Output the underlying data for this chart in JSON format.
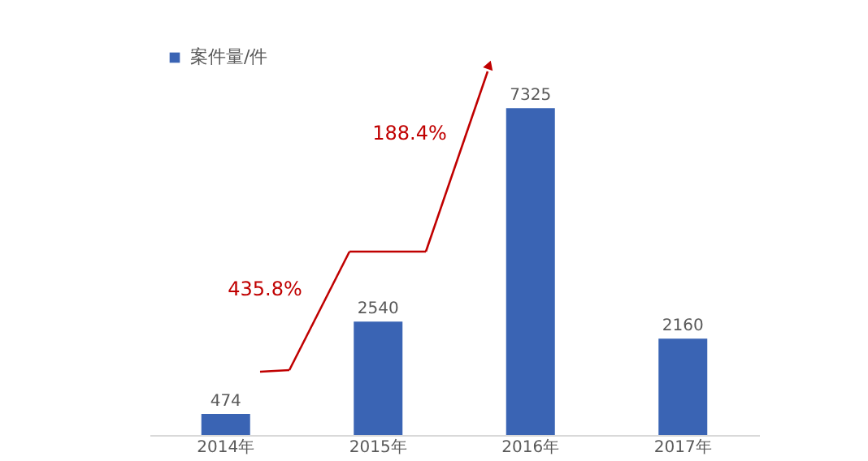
{
  "chart_data": {
    "type": "bar",
    "categories": [
      "2014年",
      "2015年",
      "2016年",
      "2017年"
    ],
    "series": [
      {
        "name": "案件量/件",
        "color": "#3a64b4",
        "values": [
          474,
          2540,
          7325,
          2160
        ]
      }
    ],
    "data_labels": true,
    "legend": "top left",
    "grid": false,
    "annotations": [
      "435.8%",
      "188.4%"
    ]
  }
}
